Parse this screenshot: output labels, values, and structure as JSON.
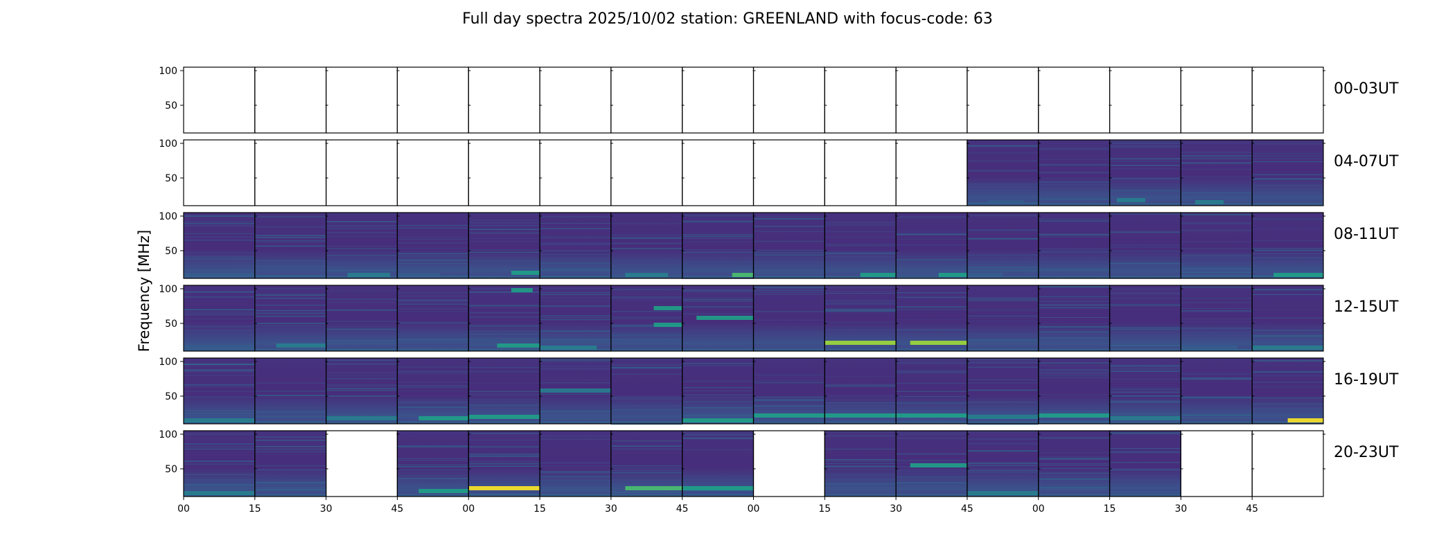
{
  "chart_data": {
    "type": "heatmap",
    "title": "Full day spectra 2025/10/02 station: GREENLAND with focus-code: 63",
    "ylabel": "Frequency [MHz]",
    "xlabel": "",
    "ylim": [
      10,
      105
    ],
    "yticks": [
      "100",
      "50"
    ],
    "xticks": [
      "00",
      "15",
      "30",
      "45",
      "00",
      "15",
      "30",
      "45",
      "00",
      "15",
      "30",
      "45",
      "00",
      "15",
      "30",
      "45"
    ],
    "colormap": [
      "#440154",
      "#46327e",
      "#365c8d",
      "#277f8e",
      "#1fa187",
      "#4ac16d",
      "#a0da39",
      "#fde725"
    ],
    "panels_per_row": 16,
    "rows": [
      {
        "label": "00-03UT",
        "panels": [
          0,
          0,
          0,
          0,
          0,
          0,
          0,
          0,
          0,
          0,
          0,
          0,
          0,
          0,
          0,
          0
        ],
        "features": []
      },
      {
        "label": "04-07UT",
        "panels": [
          0,
          0,
          0,
          0,
          0,
          0,
          0,
          0,
          0,
          0,
          0,
          1,
          1,
          1,
          1,
          1
        ],
        "features": [
          {
            "panel": 11,
            "f": 15,
            "start": 0.3,
            "end": 0.8,
            "level": 0.35
          },
          {
            "panel": 13,
            "f": 18,
            "start": 0.1,
            "end": 0.5,
            "level": 0.45
          },
          {
            "panel": 14,
            "f": 15,
            "start": 0.2,
            "end": 0.6,
            "level": 0.4
          }
        ]
      },
      {
        "label": "08-11UT",
        "panels": [
          1,
          1,
          1,
          1,
          1,
          1,
          1,
          1,
          1,
          1,
          1,
          1,
          1,
          1,
          1,
          1
        ],
        "features": [
          {
            "panel": 0,
            "f": 15,
            "start": 0.0,
            "end": 1.0,
            "level": 0.3
          },
          {
            "panel": 2,
            "f": 15,
            "start": 0.3,
            "end": 0.9,
            "level": 0.4
          },
          {
            "panel": 3,
            "f": 15,
            "start": 0.0,
            "end": 0.6,
            "level": 0.35
          },
          {
            "panel": 4,
            "f": 18,
            "start": 0.6,
            "end": 1.0,
            "level": 0.55
          },
          {
            "panel": 6,
            "f": 15,
            "start": 0.2,
            "end": 0.8,
            "level": 0.4
          },
          {
            "panel": 7,
            "f": 15,
            "start": 0.7,
            "end": 1.0,
            "level": 0.65
          },
          {
            "panel": 9,
            "f": 15,
            "start": 0.5,
            "end": 1.0,
            "level": 0.6
          },
          {
            "panel": 10,
            "f": 15,
            "start": 0.6,
            "end": 1.0,
            "level": 0.6
          },
          {
            "panel": 11,
            "f": 15,
            "start": 0.0,
            "end": 0.5,
            "level": 0.35
          },
          {
            "panel": 15,
            "f": 15,
            "start": 0.3,
            "end": 1.0,
            "level": 0.5
          }
        ]
      },
      {
        "label": "12-15UT",
        "panels": [
          1,
          1,
          1,
          1,
          1,
          1,
          1,
          1,
          1,
          1,
          1,
          1,
          1,
          1,
          1,
          1
        ],
        "features": [
          {
            "panel": 0,
            "f": 15,
            "start": 0.0,
            "end": 1.0,
            "level": 0.3
          },
          {
            "panel": 1,
            "f": 18,
            "start": 0.3,
            "end": 1.0,
            "level": 0.4
          },
          {
            "panel": 4,
            "f": 18,
            "start": 0.4,
            "end": 1.0,
            "level": 0.6
          },
          {
            "panel": 4,
            "f": 98,
            "start": 0.6,
            "end": 0.9,
            "level": 0.55
          },
          {
            "panel": 5,
            "f": 15,
            "start": 0.0,
            "end": 0.8,
            "level": 0.4
          },
          {
            "panel": 6,
            "f": 72,
            "start": 0.6,
            "end": 1.0,
            "level": 0.55
          },
          {
            "panel": 6,
            "f": 48,
            "start": 0.6,
            "end": 1.0,
            "level": 0.5
          },
          {
            "panel": 7,
            "f": 58,
            "start": 0.2,
            "end": 1.0,
            "level": 0.5
          },
          {
            "panel": 9,
            "f": 22,
            "start": 0.0,
            "end": 1.0,
            "level": 0.8
          },
          {
            "panel": 10,
            "f": 22,
            "start": 0.2,
            "end": 1.0,
            "level": 0.8
          },
          {
            "panel": 14,
            "f": 15,
            "start": 0.0,
            "end": 0.8,
            "level": 0.35
          },
          {
            "panel": 15,
            "f": 15,
            "start": 0.0,
            "end": 1.0,
            "level": 0.45
          }
        ]
      },
      {
        "label": "16-19UT",
        "panels": [
          1,
          1,
          1,
          1,
          1,
          1,
          1,
          1,
          1,
          1,
          1,
          1,
          1,
          1,
          1,
          1
        ],
        "features": [
          {
            "panel": 0,
            "f": 15,
            "start": 0.0,
            "end": 1.0,
            "level": 0.4
          },
          {
            "panel": 2,
            "f": 18,
            "start": 0.0,
            "end": 1.0,
            "level": 0.4
          },
          {
            "panel": 3,
            "f": 18,
            "start": 0.3,
            "end": 1.0,
            "level": 0.55
          },
          {
            "panel": 4,
            "f": 20,
            "start": 0.0,
            "end": 1.0,
            "level": 0.5
          },
          {
            "panel": 5,
            "f": 58,
            "start": 0.0,
            "end": 1.0,
            "level": 0.4
          },
          {
            "panel": 7,
            "f": 15,
            "start": 0.0,
            "end": 1.0,
            "level": 0.5
          },
          {
            "panel": 8,
            "f": 22,
            "start": 0.0,
            "end": 1.0,
            "level": 0.6
          },
          {
            "panel": 9,
            "f": 22,
            "start": 0.0,
            "end": 1.0,
            "level": 0.55
          },
          {
            "panel": 10,
            "f": 22,
            "start": 0.0,
            "end": 1.0,
            "level": 0.55
          },
          {
            "panel": 11,
            "f": 20,
            "start": 0.0,
            "end": 1.0,
            "level": 0.45
          },
          {
            "panel": 12,
            "f": 22,
            "start": 0.0,
            "end": 1.0,
            "level": 0.6
          },
          {
            "panel": 13,
            "f": 18,
            "start": 0.0,
            "end": 1.0,
            "level": 0.4
          },
          {
            "panel": 15,
            "f": 15,
            "start": 0.5,
            "end": 1.0,
            "level": 0.95
          }
        ]
      },
      {
        "label": "20-23UT",
        "panels": [
          1,
          1,
          0,
          1,
          1,
          1,
          1,
          1,
          0,
          1,
          1,
          1,
          1,
          1,
          0,
          0
        ],
        "features": [
          {
            "panel": 0,
            "f": 15,
            "start": 0.0,
            "end": 1.0,
            "level": 0.45
          },
          {
            "panel": 3,
            "f": 18,
            "start": 0.3,
            "end": 1.0,
            "level": 0.55
          },
          {
            "panel": 4,
            "f": 22,
            "start": 0.0,
            "end": 1.0,
            "level": 0.95
          },
          {
            "panel": 6,
            "f": 22,
            "start": 0.2,
            "end": 1.0,
            "level": 0.65
          },
          {
            "panel": 7,
            "f": 22,
            "start": 0.0,
            "end": 1.0,
            "level": 0.6
          },
          {
            "panel": 10,
            "f": 55,
            "start": 0.2,
            "end": 1.0,
            "level": 0.5
          },
          {
            "panel": 11,
            "f": 15,
            "start": 0.0,
            "end": 1.0,
            "level": 0.45
          }
        ]
      }
    ]
  }
}
